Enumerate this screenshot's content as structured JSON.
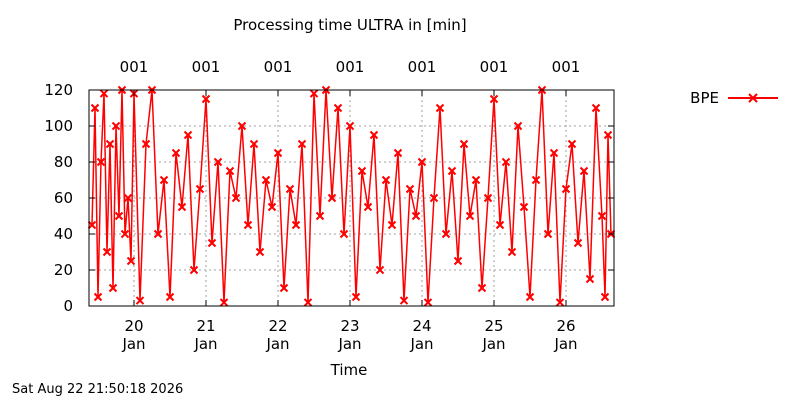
{
  "chart_data": {
    "type": "line",
    "title": "Processing time ULTRA in [min]",
    "xlabel": "Time",
    "ylabel": "",
    "ylim": [
      0,
      120
    ],
    "yticks": [
      0,
      20,
      40,
      60,
      80,
      100,
      120
    ],
    "xlim": [
      "2026-01-19T09:00",
      "2026-01-26T16:00"
    ],
    "xticks": [
      {
        "date": "2026-01-20",
        "day": "20",
        "month": "Jan"
      },
      {
        "date": "2026-01-21",
        "day": "21",
        "month": "Jan"
      },
      {
        "date": "2026-01-22",
        "day": "22",
        "month": "Jan"
      },
      {
        "date": "2026-01-23",
        "day": "23",
        "month": "Jan"
      },
      {
        "date": "2026-01-24",
        "day": "24",
        "month": "Jan"
      },
      {
        "date": "2026-01-25",
        "day": "25",
        "month": "Jan"
      },
      {
        "date": "2026-01-26",
        "day": "26",
        "month": "Jan"
      }
    ],
    "top_labels": [
      "001",
      "001",
      "001",
      "001",
      "001",
      "001",
      "001"
    ],
    "grid": true,
    "legend_position": "outside-top-right",
    "series": [
      {
        "name": "BPE",
        "color": "#ff0000",
        "marker": "x",
        "points": [
          [
            "2026-01-19T10:00",
            45
          ],
          [
            "2026-01-19T11:00",
            110
          ],
          [
            "2026-01-19T12:00",
            5
          ],
          [
            "2026-01-19T13:00",
            80
          ],
          [
            "2026-01-19T14:00",
            118
          ],
          [
            "2026-01-19T15:00",
            30
          ],
          [
            "2026-01-19T16:00",
            90
          ],
          [
            "2026-01-19T17:00",
            10
          ],
          [
            "2026-01-19T18:00",
            100
          ],
          [
            "2026-01-19T19:00",
            50
          ],
          [
            "2026-01-19T20:00",
            120
          ],
          [
            "2026-01-19T21:00",
            40
          ],
          [
            "2026-01-19T22:00",
            60
          ],
          [
            "2026-01-19T23:00",
            25
          ],
          [
            "2026-01-20T00:00",
            118
          ],
          [
            "2026-01-20T02:00",
            3
          ],
          [
            "2026-01-20T04:00",
            90
          ],
          [
            "2026-01-20T06:00",
            120
          ],
          [
            "2026-01-20T08:00",
            40
          ],
          [
            "2026-01-20T10:00",
            70
          ],
          [
            "2026-01-20T12:00",
            5
          ],
          [
            "2026-01-20T14:00",
            85
          ],
          [
            "2026-01-20T16:00",
            55
          ],
          [
            "2026-01-20T18:00",
            95
          ],
          [
            "2026-01-20T20:00",
            20
          ],
          [
            "2026-01-20T22:00",
            65
          ],
          [
            "2026-01-21T00:00",
            115
          ],
          [
            "2026-01-21T02:00",
            35
          ],
          [
            "2026-01-21T04:00",
            80
          ],
          [
            "2026-01-21T06:00",
            2
          ],
          [
            "2026-01-21T08:00",
            75
          ],
          [
            "2026-01-21T10:00",
            60
          ],
          [
            "2026-01-21T12:00",
            100
          ],
          [
            "2026-01-21T14:00",
            45
          ],
          [
            "2026-01-21T16:00",
            90
          ],
          [
            "2026-01-21T18:00",
            30
          ],
          [
            "2026-01-21T20:00",
            70
          ],
          [
            "2026-01-21T22:00",
            55
          ],
          [
            "2026-01-22T00:00",
            85
          ],
          [
            "2026-01-22T02:00",
            10
          ],
          [
            "2026-01-22T04:00",
            65
          ],
          [
            "2026-01-22T06:00",
            45
          ],
          [
            "2026-01-22T08:00",
            90
          ],
          [
            "2026-01-22T10:00",
            2
          ],
          [
            "2026-01-22T12:00",
            118
          ],
          [
            "2026-01-22T14:00",
            50
          ],
          [
            "2026-01-22T16:00",
            120
          ],
          [
            "2026-01-22T18:00",
            60
          ],
          [
            "2026-01-22T20:00",
            110
          ],
          [
            "2026-01-22T22:00",
            40
          ],
          [
            "2026-01-23T00:00",
            100
          ],
          [
            "2026-01-23T02:00",
            5
          ],
          [
            "2026-01-23T04:00",
            75
          ],
          [
            "2026-01-23T06:00",
            55
          ],
          [
            "2026-01-23T08:00",
            95
          ],
          [
            "2026-01-23T10:00",
            20
          ],
          [
            "2026-01-23T12:00",
            70
          ],
          [
            "2026-01-23T14:00",
            45
          ],
          [
            "2026-01-23T16:00",
            85
          ],
          [
            "2026-01-23T18:00",
            3
          ],
          [
            "2026-01-23T20:00",
            65
          ],
          [
            "2026-01-23T22:00",
            50
          ],
          [
            "2026-01-24T00:00",
            80
          ],
          [
            "2026-01-24T02:00",
            2
          ],
          [
            "2026-01-24T04:00",
            60
          ],
          [
            "2026-01-24T06:00",
            110
          ],
          [
            "2026-01-24T08:00",
            40
          ],
          [
            "2026-01-24T10:00",
            75
          ],
          [
            "2026-01-24T12:00",
            25
          ],
          [
            "2026-01-24T14:00",
            90
          ],
          [
            "2026-01-24T16:00",
            50
          ],
          [
            "2026-01-24T18:00",
            70
          ],
          [
            "2026-01-24T20:00",
            10
          ],
          [
            "2026-01-24T22:00",
            60
          ],
          [
            "2026-01-25T00:00",
            115
          ],
          [
            "2026-01-25T02:00",
            45
          ],
          [
            "2026-01-25T04:00",
            80
          ],
          [
            "2026-01-25T06:00",
            30
          ],
          [
            "2026-01-25T08:00",
            100
          ],
          [
            "2026-01-25T10:00",
            55
          ],
          [
            "2026-01-25T12:00",
            5
          ],
          [
            "2026-01-25T14:00",
            70
          ],
          [
            "2026-01-25T16:00",
            120
          ],
          [
            "2026-01-25T18:00",
            40
          ],
          [
            "2026-01-25T20:00",
            85
          ],
          [
            "2026-01-25T22:00",
            2
          ],
          [
            "2026-01-26T00:00",
            65
          ],
          [
            "2026-01-26T02:00",
            90
          ],
          [
            "2026-01-26T04:00",
            35
          ],
          [
            "2026-01-26T06:00",
            75
          ],
          [
            "2026-01-26T08:00",
            15
          ],
          [
            "2026-01-26T10:00",
            110
          ],
          [
            "2026-01-26T12:00",
            50
          ],
          [
            "2026-01-26T13:00",
            5
          ],
          [
            "2026-01-26T14:00",
            95
          ],
          [
            "2026-01-26T15:00",
            40
          ]
        ]
      }
    ]
  },
  "footer": {
    "timestamp": "Sat Aug 22 21:50:18 2026"
  }
}
